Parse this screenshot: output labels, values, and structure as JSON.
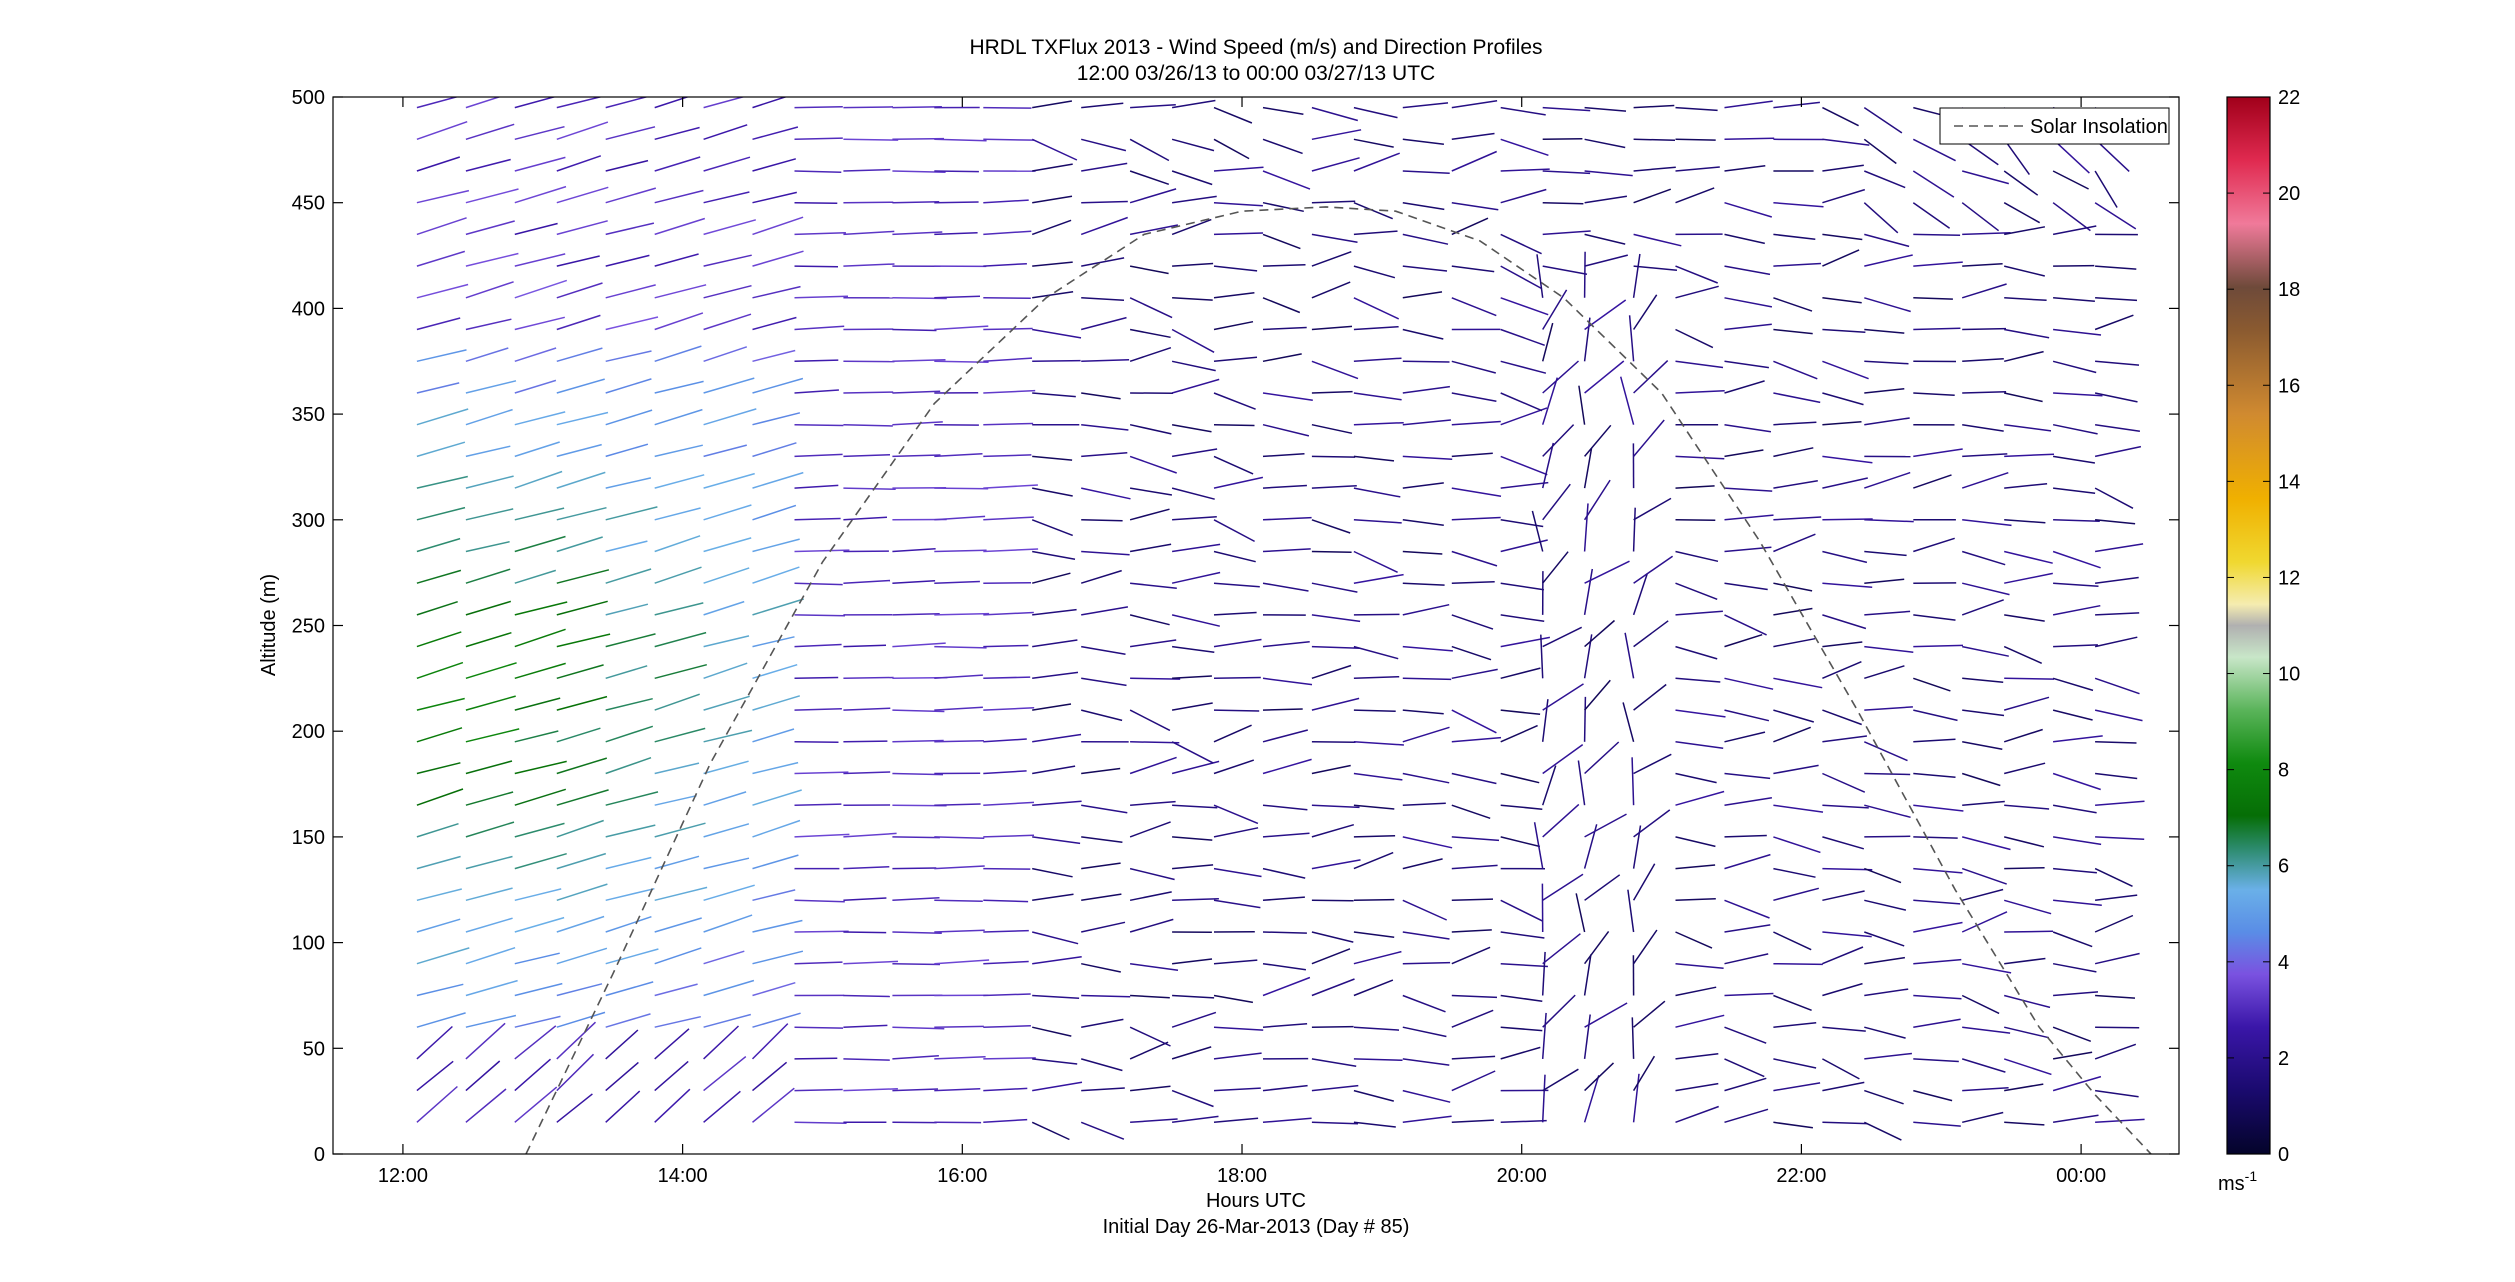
{
  "chart_data": {
    "type": "quiver",
    "title": "HRDL TXFlux 2013 - Wind Speed (m/s) and Direction Profiles",
    "subtitle": "12:00 03/26/13 to 00:00 03/27/13  UTC",
    "xlabel": "Hours UTC",
    "xlabel2": "Initial Day 26-Mar-2013 (Day # 85)",
    "ylabel": "Altitude (m)",
    "xlim": [
      11.5,
      24.7
    ],
    "ylim": [
      0,
      500
    ],
    "x_ticks": [
      12,
      14,
      16,
      18,
      20,
      22,
      24
    ],
    "x_tick_labels": [
      "12:00",
      "14:00",
      "16:00",
      "18:00",
      "20:00",
      "22:00",
      "00:00"
    ],
    "y_ticks": [
      0,
      50,
      100,
      150,
      200,
      250,
      300,
      350,
      400,
      450,
      500
    ],
    "y_tick_labels": [
      "0",
      "50",
      "100",
      "150",
      "200",
      "250",
      "300",
      "350",
      "400",
      "450",
      "500"
    ],
    "colorbar": {
      "range": [
        0,
        22
      ],
      "ticks": [
        0,
        2,
        4,
        6,
        8,
        10,
        12,
        14,
        16,
        18,
        20,
        22
      ],
      "tick_labels": [
        "0",
        "2",
        "4",
        "6",
        "8",
        "10",
        "12",
        "14",
        "16",
        "18",
        "20",
        "22"
      ],
      "unit_base": "ms",
      "unit_exp": "-1"
    },
    "legend": {
      "entries": [
        "Solar Insolation"
      ],
      "placement": "top-right"
    },
    "solar_insolation": {
      "x": [
        12.88,
        13.5,
        14.2,
        15.0,
        15.8,
        16.6,
        17.3,
        18.0,
        18.6,
        19.1,
        19.7,
        20.3,
        21.0,
        21.7,
        22.4,
        23.1,
        23.7,
        24.1,
        24.5
      ],
      "y": [
        0,
        85,
        185,
        280,
        355,
        405,
        435,
        446,
        448,
        446,
        432,
        405,
        360,
        290,
        210,
        125,
        60,
        28,
        0
      ]
    },
    "profile_times": [
      12.1,
      12.45,
      12.8,
      13.1,
      13.45,
      13.8,
      14.15,
      14.5,
      14.8,
      15.15,
      15.5,
      15.8,
      16.15,
      16.5,
      16.85,
      17.2,
      17.5,
      17.8,
      18.15,
      18.5,
      18.8,
      19.15,
      19.5,
      19.85,
      20.15,
      20.45,
      20.8,
      21.1,
      21.45,
      21.8,
      22.15,
      22.45,
      22.8,
      23.15,
      23.45,
      23.8,
      24.1
    ],
    "profile_altitudes": [
      15,
      30,
      45,
      60,
      75,
      90,
      105,
      120,
      135,
      150,
      165,
      180,
      195,
      210,
      225,
      240,
      255,
      270,
      285,
      300,
      315,
      330,
      345,
      360,
      375,
      390,
      405,
      420,
      435,
      450,
      465,
      480,
      495
    ]
  }
}
